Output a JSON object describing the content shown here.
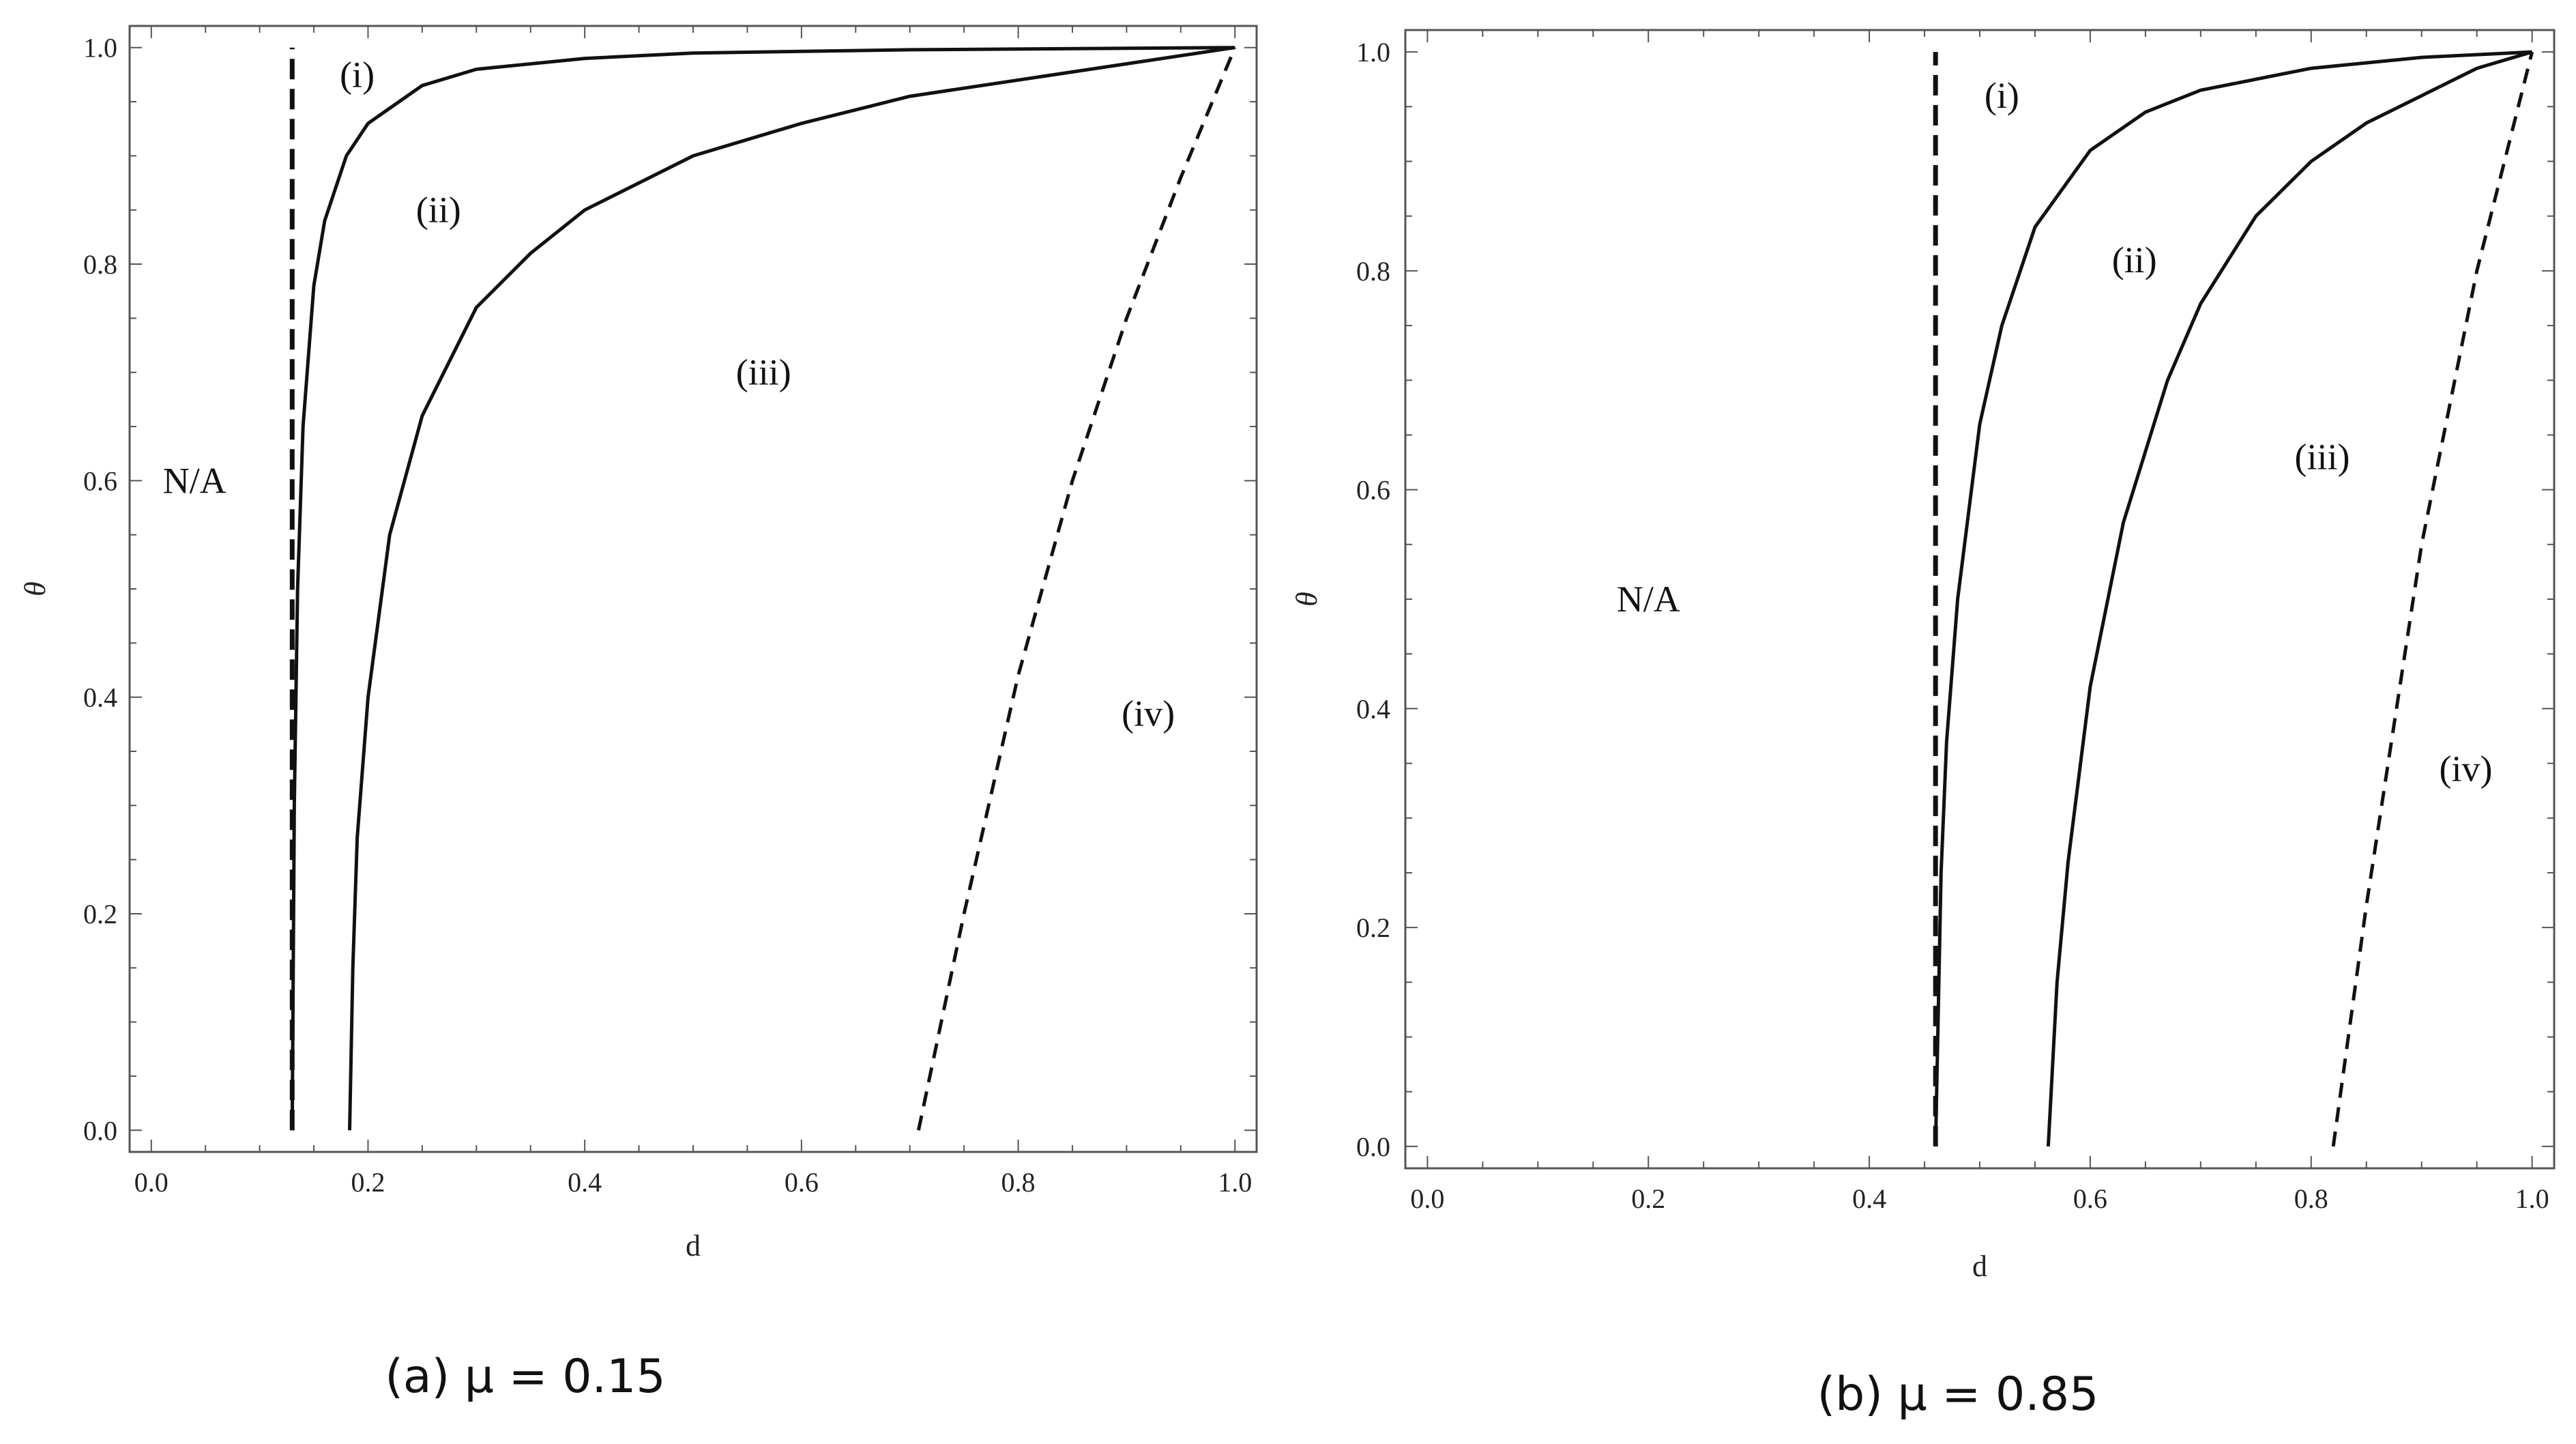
{
  "chart_data": [
    {
      "type": "line",
      "caption": "(a)  μ = 0.15",
      "xlabel": "d",
      "ylabel": "θ",
      "xlim": [
        -0.02,
        1.02
      ],
      "ylim": [
        -0.02,
        1.02
      ],
      "xticks": [
        0.0,
        0.2,
        0.4,
        0.6,
        0.8,
        1.0
      ],
      "yticks": [
        0.0,
        0.2,
        0.4,
        0.6,
        0.8,
        1.0
      ],
      "xtick_labels": [
        "0.0",
        "0.2",
        "0.4",
        "0.6",
        "0.8",
        "1.0"
      ],
      "ytick_labels": [
        "0.0",
        "0.2",
        "0.4",
        "0.6",
        "0.8",
        "1.0"
      ],
      "series": [
        {
          "style": "dashed",
          "x": [
            0.13,
            0.13
          ],
          "y": [
            0.0,
            1.0
          ]
        },
        {
          "style": "solid",
          "x": [
            0.13,
            0.132,
            0.135,
            0.14,
            0.15,
            0.16,
            0.18,
            0.2,
            0.25,
            0.3,
            0.4,
            0.5,
            0.7,
            1.0
          ],
          "y": [
            0.0,
            0.3,
            0.5,
            0.65,
            0.78,
            0.84,
            0.9,
            0.93,
            0.965,
            0.98,
            0.99,
            0.995,
            0.998,
            1.0
          ]
        },
        {
          "style": "solid",
          "x": [
            0.183,
            0.186,
            0.19,
            0.2,
            0.22,
            0.25,
            0.3,
            0.35,
            0.4,
            0.5,
            0.6,
            0.7,
            0.8,
            0.9,
            1.0
          ],
          "y": [
            0.0,
            0.15,
            0.27,
            0.4,
            0.55,
            0.66,
            0.76,
            0.81,
            0.85,
            0.9,
            0.93,
            0.955,
            0.97,
            0.985,
            1.0
          ]
        },
        {
          "style": "dashed",
          "x": [
            0.708,
            0.75,
            0.8,
            0.85,
            0.9,
            0.95,
            1.0
          ],
          "y": [
            0.0,
            0.2,
            0.42,
            0.6,
            0.75,
            0.88,
            1.0
          ]
        }
      ],
      "annotations": [
        {
          "text": "(i)",
          "x": 0.19,
          "y": 0.975
        },
        {
          "text": "(ii)",
          "x": 0.265,
          "y": 0.85
        },
        {
          "text": "(iii)",
          "x": 0.565,
          "y": 0.7
        },
        {
          "text": "(iv)",
          "x": 0.92,
          "y": 0.385
        },
        {
          "text": "N/A",
          "x": 0.04,
          "y": 0.6
        }
      ]
    },
    {
      "type": "line",
      "caption": "(b)  μ = 0.85",
      "xlabel": "d",
      "ylabel": "θ",
      "xlim": [
        -0.02,
        1.02
      ],
      "ylim": [
        -0.02,
        1.02
      ],
      "xticks": [
        0.0,
        0.2,
        0.4,
        0.6,
        0.8,
        1.0
      ],
      "yticks": [
        0.0,
        0.2,
        0.4,
        0.6,
        0.8,
        1.0
      ],
      "xtick_labels": [
        "0.0",
        "0.2",
        "0.4",
        "0.6",
        "0.8",
        "1.0"
      ],
      "ytick_labels": [
        "0.0",
        "0.2",
        "0.4",
        "0.6",
        "0.8",
        "1.0"
      ],
      "series": [
        {
          "style": "dashed",
          "x": [
            0.46,
            0.46
          ],
          "y": [
            0.0,
            1.0
          ]
        },
        {
          "style": "solid",
          "x": [
            0.46,
            0.465,
            0.47,
            0.48,
            0.5,
            0.52,
            0.55,
            0.6,
            0.65,
            0.7,
            0.8,
            0.9,
            1.0
          ],
          "y": [
            0.0,
            0.25,
            0.37,
            0.5,
            0.66,
            0.75,
            0.84,
            0.91,
            0.945,
            0.965,
            0.985,
            0.995,
            1.0
          ]
        },
        {
          "style": "solid",
          "x": [
            0.562,
            0.57,
            0.58,
            0.6,
            0.63,
            0.67,
            0.7,
            0.75,
            0.8,
            0.85,
            0.9,
            0.95,
            1.0
          ],
          "y": [
            0.0,
            0.15,
            0.26,
            0.42,
            0.57,
            0.7,
            0.77,
            0.85,
            0.9,
            0.935,
            0.96,
            0.985,
            1.0
          ]
        },
        {
          "style": "dashed",
          "x": [
            0.82,
            0.85,
            0.9,
            0.95,
            1.0
          ],
          "y": [
            0.0,
            0.22,
            0.55,
            0.8,
            1.0
          ]
        }
      ],
      "annotations": [
        {
          "text": "(i)",
          "x": 0.52,
          "y": 0.96
        },
        {
          "text": "(ii)",
          "x": 0.64,
          "y": 0.81
        },
        {
          "text": "(iii)",
          "x": 0.81,
          "y": 0.63
        },
        {
          "text": "(iv)",
          "x": 0.94,
          "y": 0.345
        },
        {
          "text": "N/A",
          "x": 0.2,
          "y": 0.5
        }
      ]
    }
  ]
}
